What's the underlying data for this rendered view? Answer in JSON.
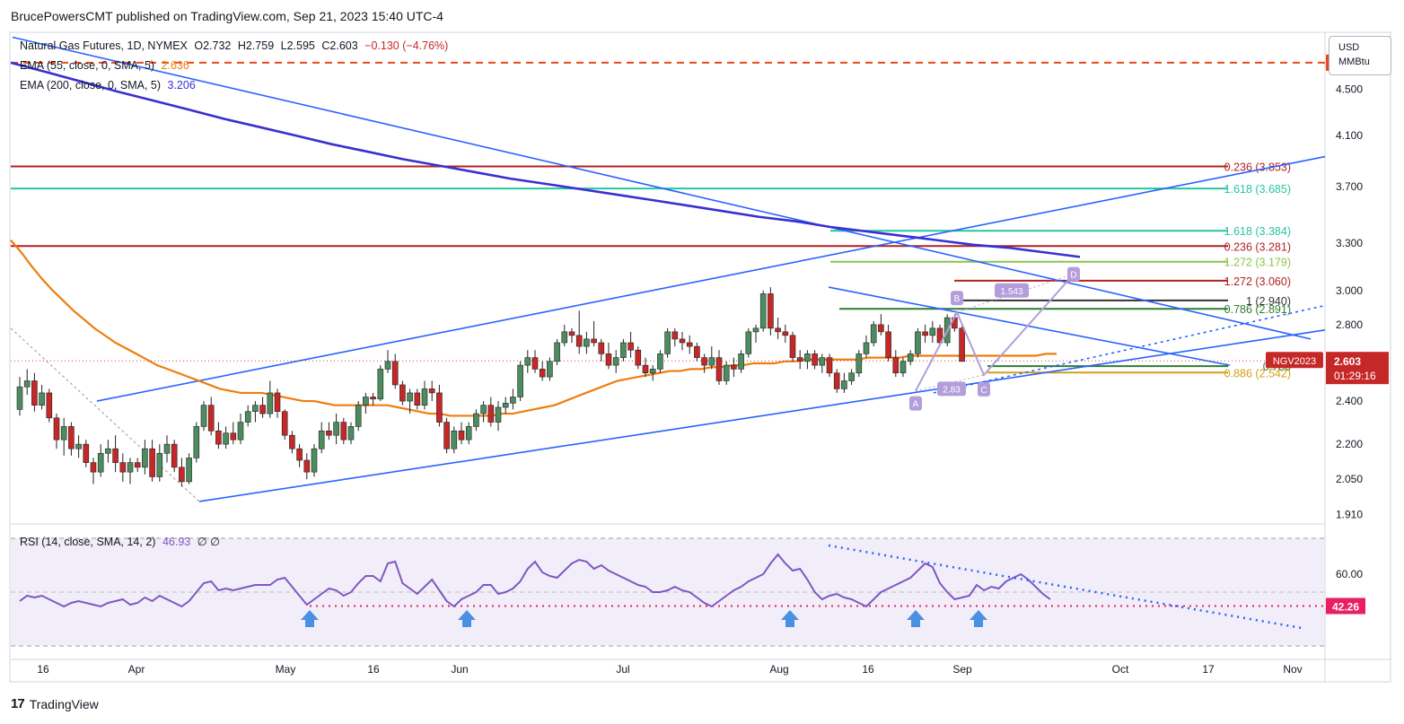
{
  "header": {
    "text": "BrucePowersCMT published on TradingView.com, Sep 21, 2023 15:40 UTC-4"
  },
  "legend": {
    "symbol": "Natural Gas Futures, 1D, NYMEX",
    "open": "O2.732",
    "high": "H2.759",
    "low": "L2.595",
    "close": "C2.603",
    "change": "−0.130 (−4.76%)",
    "ema55_label": "EMA (55, close, 0, SMA, 5)",
    "ema55_value": "2.636",
    "ema200_label": "EMA (200, close, 0, SMA, 5)",
    "ema200_value": "3.206",
    "rsi_label": "RSI (14, close, SMA, 14, 2)",
    "rsi_value": "46.93",
    "rsi_extra": "∅ ∅"
  },
  "currency": {
    "line1": "USD",
    "line2": "MMBtu"
  },
  "footer": {
    "logo": "17",
    "brand": "TradingView"
  },
  "colors": {
    "up": "#4d8c5f",
    "down": "#c62828",
    "ema55": "#ef7d0e",
    "ema200": "#3a2fd1",
    "trend": "#2962ff",
    "rsi": "#7e57c2",
    "fib_red": "#b22222",
    "fib_teal": "#26c6a0",
    "fib_olive": "#8bc34a",
    "abcd": "#b39ddb"
  },
  "chart_data": {
    "type": "candlestick",
    "title": "Natural Gas Futures, 1D, NYMEX",
    "ylim": [
      1.88,
      5.05
    ],
    "y_scale": "log",
    "y_ticks": [
      "4.500",
      "4.100",
      "3.700",
      "3.300",
      "3.000",
      "2.800",
      "2.400",
      "2.200",
      "2.050",
      "1.910"
    ],
    "x_ticks": [
      "16",
      "Apr",
      "May",
      "16",
      "Jun",
      "Jul",
      "Aug",
      "16",
      "Sep",
      "Oct",
      "17",
      "Nov"
    ],
    "last_price": "2.603",
    "countdown": "01:29:16",
    "symbol_tag": "NGV2023",
    "price_tag_top": "4.750",
    "candles": [
      [
        2.36,
        2.52,
        2.33,
        2.47
      ],
      [
        2.47,
        2.56,
        2.43,
        2.5
      ],
      [
        2.5,
        2.54,
        2.35,
        2.38
      ],
      [
        2.38,
        2.48,
        2.36,
        2.44
      ],
      [
        2.44,
        2.46,
        2.3,
        2.32
      ],
      [
        2.32,
        2.34,
        2.18,
        2.22
      ],
      [
        2.22,
        2.32,
        2.15,
        2.28
      ],
      [
        2.28,
        2.3,
        2.15,
        2.18
      ],
      [
        2.18,
        2.24,
        2.14,
        2.2
      ],
      [
        2.2,
        2.22,
        2.1,
        2.12
      ],
      [
        2.12,
        2.14,
        2.03,
        2.08
      ],
      [
        2.08,
        2.2,
        2.06,
        2.16
      ],
      [
        2.16,
        2.22,
        2.12,
        2.18
      ],
      [
        2.18,
        2.24,
        2.08,
        2.12
      ],
      [
        2.12,
        2.16,
        2.04,
        2.08
      ],
      [
        2.08,
        2.14,
        2.03,
        2.12
      ],
      [
        2.12,
        2.14,
        2.08,
        2.1
      ],
      [
        2.1,
        2.22,
        2.07,
        2.18
      ],
      [
        2.18,
        2.22,
        2.04,
        2.06
      ],
      [
        2.06,
        2.2,
        2.04,
        2.16
      ],
      [
        2.16,
        2.24,
        2.12,
        2.2
      ],
      [
        2.2,
        2.22,
        2.08,
        2.1
      ],
      [
        2.1,
        2.14,
        2.02,
        2.04
      ],
      [
        2.04,
        2.16,
        2.03,
        2.14
      ],
      [
        2.14,
        2.3,
        2.12,
        2.28
      ],
      [
        2.28,
        2.4,
        2.26,
        2.38
      ],
      [
        2.38,
        2.42,
        2.24,
        2.26
      ],
      [
        2.26,
        2.3,
        2.18,
        2.2
      ],
      [
        2.2,
        2.28,
        2.18,
        2.25
      ],
      [
        2.25,
        2.3,
        2.2,
        2.22
      ],
      [
        2.22,
        2.34,
        2.2,
        2.3
      ],
      [
        2.3,
        2.38,
        2.28,
        2.35
      ],
      [
        2.35,
        2.4,
        2.3,
        2.38
      ],
      [
        2.38,
        2.42,
        2.32,
        2.34
      ],
      [
        2.34,
        2.5,
        2.32,
        2.44
      ],
      [
        2.44,
        2.46,
        2.32,
        2.35
      ],
      [
        2.35,
        2.36,
        2.22,
        2.24
      ],
      [
        2.24,
        2.26,
        2.16,
        2.18
      ],
      [
        2.18,
        2.2,
        2.1,
        2.13
      ],
      [
        2.13,
        2.16,
        2.05,
        2.08
      ],
      [
        2.08,
        2.2,
        2.06,
        2.18
      ],
      [
        2.18,
        2.3,
        2.16,
        2.26
      ],
      [
        2.26,
        2.3,
        2.22,
        2.24
      ],
      [
        2.24,
        2.34,
        2.2,
        2.3
      ],
      [
        2.3,
        2.32,
        2.2,
        2.22
      ],
      [
        2.22,
        2.3,
        2.2,
        2.28
      ],
      [
        2.28,
        2.4,
        2.26,
        2.38
      ],
      [
        2.38,
        2.44,
        2.34,
        2.42
      ],
      [
        2.42,
        2.44,
        2.38,
        2.41
      ],
      [
        2.41,
        2.58,
        2.4,
        2.56
      ],
      [
        2.56,
        2.66,
        2.54,
        2.6
      ],
      [
        2.6,
        2.64,
        2.46,
        2.48
      ],
      [
        2.48,
        2.5,
        2.38,
        2.4
      ],
      [
        2.4,
        2.46,
        2.34,
        2.44
      ],
      [
        2.44,
        2.46,
        2.36,
        2.38
      ],
      [
        2.38,
        2.5,
        2.36,
        2.46
      ],
      [
        2.46,
        2.5,
        2.4,
        2.44
      ],
      [
        2.44,
        2.48,
        2.28,
        2.3
      ],
      [
        2.3,
        2.32,
        2.16,
        2.18
      ],
      [
        2.18,
        2.28,
        2.16,
        2.26
      ],
      [
        2.26,
        2.3,
        2.2,
        2.22
      ],
      [
        2.22,
        2.3,
        2.2,
        2.28
      ],
      [
        2.28,
        2.36,
        2.26,
        2.34
      ],
      [
        2.34,
        2.4,
        2.3,
        2.38
      ],
      [
        2.38,
        2.42,
        2.28,
        2.3
      ],
      [
        2.3,
        2.4,
        2.26,
        2.37
      ],
      [
        2.37,
        2.42,
        2.34,
        2.39
      ],
      [
        2.39,
        2.46,
        2.36,
        2.42
      ],
      [
        2.42,
        2.6,
        2.4,
        2.58
      ],
      [
        2.58,
        2.66,
        2.54,
        2.62
      ],
      [
        2.62,
        2.66,
        2.54,
        2.56
      ],
      [
        2.56,
        2.6,
        2.5,
        2.52
      ],
      [
        2.52,
        2.62,
        2.5,
        2.6
      ],
      [
        2.6,
        2.72,
        2.58,
        2.7
      ],
      [
        2.7,
        2.8,
        2.68,
        2.76
      ],
      [
        2.76,
        2.78,
        2.7,
        2.74
      ],
      [
        2.74,
        2.88,
        2.64,
        2.68
      ],
      [
        2.68,
        2.76,
        2.64,
        2.72
      ],
      [
        2.72,
        2.82,
        2.68,
        2.7
      ],
      [
        2.7,
        2.72,
        2.6,
        2.64
      ],
      [
        2.64,
        2.7,
        2.56,
        2.58
      ],
      [
        2.58,
        2.66,
        2.54,
        2.62
      ],
      [
        2.62,
        2.72,
        2.6,
        2.7
      ],
      [
        2.7,
        2.76,
        2.62,
        2.66
      ],
      [
        2.66,
        2.68,
        2.56,
        2.58
      ],
      [
        2.58,
        2.62,
        2.52,
        2.54
      ],
      [
        2.54,
        2.58,
        2.5,
        2.56
      ],
      [
        2.56,
        2.66,
        2.54,
        2.64
      ],
      [
        2.64,
        2.78,
        2.62,
        2.76
      ],
      [
        2.76,
        2.78,
        2.68,
        2.72
      ],
      [
        2.72,
        2.76,
        2.66,
        2.7
      ],
      [
        2.7,
        2.74,
        2.64,
        2.68
      ],
      [
        2.68,
        2.7,
        2.6,
        2.62
      ],
      [
        2.62,
        2.64,
        2.54,
        2.58
      ],
      [
        2.58,
        2.68,
        2.56,
        2.62
      ],
      [
        2.62,
        2.66,
        2.48,
        2.5
      ],
      [
        2.5,
        2.6,
        2.48,
        2.58
      ],
      [
        2.58,
        2.62,
        2.52,
        2.56
      ],
      [
        2.56,
        2.66,
        2.54,
        2.64
      ],
      [
        2.64,
        2.78,
        2.62,
        2.76
      ],
      [
        2.76,
        2.8,
        2.7,
        2.78
      ],
      [
        2.78,
        3.0,
        2.76,
        2.98
      ],
      [
        2.98,
        3.02,
        2.74,
        2.78
      ],
      [
        2.78,
        2.84,
        2.72,
        2.76
      ],
      [
        2.76,
        2.8,
        2.7,
        2.74
      ],
      [
        2.74,
        2.76,
        2.6,
        2.62
      ],
      [
        2.62,
        2.66,
        2.56,
        2.6
      ],
      [
        2.6,
        2.66,
        2.56,
        2.64
      ],
      [
        2.64,
        2.66,
        2.56,
        2.58
      ],
      [
        2.58,
        2.64,
        2.54,
        2.62
      ],
      [
        2.62,
        2.64,
        2.52,
        2.54
      ],
      [
        2.54,
        2.56,
        2.44,
        2.46
      ],
      [
        2.46,
        2.54,
        2.44,
        2.5
      ],
      [
        2.5,
        2.56,
        2.48,
        2.54
      ],
      [
        2.54,
        2.66,
        2.52,
        2.64
      ],
      [
        2.64,
        2.74,
        2.62,
        2.7
      ],
      [
        2.7,
        2.82,
        2.68,
        2.8
      ],
      [
        2.8,
        2.86,
        2.74,
        2.76
      ],
      [
        2.76,
        2.8,
        2.6,
        2.62
      ],
      [
        2.62,
        2.66,
        2.52,
        2.54
      ],
      [
        2.54,
        2.62,
        2.52,
        2.6
      ],
      [
        2.6,
        2.66,
        2.58,
        2.64
      ],
      [
        2.64,
        2.78,
        2.62,
        2.76
      ],
      [
        2.76,
        2.8,
        2.7,
        2.74
      ],
      [
        2.74,
        2.82,
        2.7,
        2.78
      ],
      [
        2.78,
        2.8,
        2.68,
        2.7
      ],
      [
        2.7,
        2.86,
        2.68,
        2.84
      ],
      [
        2.84,
        2.86,
        2.76,
        2.78
      ],
      [
        2.78,
        2.79,
        2.6,
        2.6
      ]
    ],
    "ema55": [
      3.32,
      3.24,
      3.15,
      3.07,
      3.0,
      2.94,
      2.88,
      2.83,
      2.78,
      2.74,
      2.7,
      2.67,
      2.64,
      2.61,
      2.58,
      2.56,
      2.54,
      2.52,
      2.5,
      2.48,
      2.46,
      2.45,
      2.44,
      2.44,
      2.44,
      2.43,
      2.42,
      2.41,
      2.4,
      2.4,
      2.39,
      2.38,
      2.38,
      2.38,
      2.38,
      2.38,
      2.38,
      2.37,
      2.36,
      2.35,
      2.34,
      2.34,
      2.33,
      2.33,
      2.33,
      2.33,
      2.33,
      2.34,
      2.34,
      2.35,
      2.36,
      2.37,
      2.38,
      2.4,
      2.42,
      2.44,
      2.46,
      2.48,
      2.5,
      2.51,
      2.52,
      2.53,
      2.54,
      2.55,
      2.55,
      2.56,
      2.56,
      2.57,
      2.57,
      2.58,
      2.58,
      2.59,
      2.59,
      2.59,
      2.6,
      2.6,
      2.61,
      2.61,
      2.61,
      2.61,
      2.61,
      2.61,
      2.62,
      2.62,
      2.62,
      2.62,
      2.63,
      2.63,
      2.63,
      2.63,
      2.63,
      2.63,
      2.63,
      2.63,
      2.63,
      2.63,
      2.63,
      2.63,
      2.63,
      2.64,
      2.64
    ],
    "ema200": [
      4.75,
      4.66,
      4.57,
      4.48,
      4.4,
      4.32,
      4.24,
      4.17,
      4.1,
      4.03,
      3.97,
      3.91,
      3.86,
      3.81,
      3.76,
      3.72,
      3.68,
      3.64,
      3.6,
      3.56,
      3.52,
      3.48,
      3.45,
      3.41,
      3.38,
      3.35,
      3.32,
      3.29,
      3.27,
      3.24,
      3.21
    ],
    "fib_levels": [
      {
        "label": "0.236 (3.853)",
        "value": 3.853,
        "color": "#b22222"
      },
      {
        "label": "1.618 (3.685)",
        "value": 3.685,
        "color": "#26c6a0"
      },
      {
        "label": "1.618 (3.384)",
        "value": 3.384,
        "color": "#26c6a0"
      },
      {
        "label": "0.236 (3.281)",
        "value": 3.281,
        "color": "#b22222"
      },
      {
        "label": "1.272 (3.179)",
        "value": 3.179,
        "color": "#8bc34a"
      },
      {
        "label": "1.272 (3.060)",
        "value": 3.06,
        "color": "#b22222"
      },
      {
        "label": "1 (2.940)",
        "value": 2.94,
        "color": "#333333"
      },
      {
        "label": "0.786 (2.891)",
        "value": 2.891,
        "color": "#2e7d32"
      },
      {
        "label": "0.786",
        "value": 2.575,
        "color": "#2e7d32"
      },
      {
        "label": "0.886 (2.542)",
        "value": 2.542,
        "color": "#d4a017"
      }
    ],
    "abcd": {
      "A": "A",
      "B": "B",
      "C": "C",
      "D": "D",
      "ab_ratio": "1.543",
      "bc_ratio": "2.83"
    },
    "rsi": {
      "ylim": [
        20,
        85
      ],
      "y_ticks": [
        "60.00"
      ],
      "level_label": "42.26",
      "values": [
        45,
        48,
        47,
        48,
        46,
        44,
        42,
        44,
        45,
        44,
        43,
        42,
        44,
        45,
        46,
        43,
        44,
        47,
        45,
        48,
        46,
        44,
        42,
        45,
        50,
        55,
        56,
        51,
        52,
        51,
        52,
        53,
        54,
        54,
        54,
        57,
        58,
        53,
        48,
        43,
        46,
        49,
        52,
        51,
        48,
        50,
        55,
        59,
        59,
        56,
        66,
        67,
        55,
        52,
        49,
        53,
        57,
        51,
        45,
        42,
        46,
        48,
        50,
        54,
        54,
        49,
        50,
        52,
        56,
        63,
        67,
        61,
        59,
        58,
        62,
        66,
        68,
        67,
        63,
        65,
        62,
        60,
        58,
        56,
        54,
        53,
        50,
        50,
        51,
        53,
        51,
        50,
        47,
        44,
        42,
        45,
        48,
        51,
        53,
        56,
        58,
        60,
        66,
        71,
        66,
        62,
        63,
        57,
        50,
        46,
        48,
        49,
        47,
        46,
        44,
        42,
        46,
        50,
        52,
        54,
        56,
        58,
        62,
        66,
        64,
        55,
        50,
        46,
        47,
        48,
        54,
        51,
        53,
        52,
        56,
        58,
        60,
        57,
        53,
        49,
        46
      ],
      "arrow_markers": 5
    }
  }
}
